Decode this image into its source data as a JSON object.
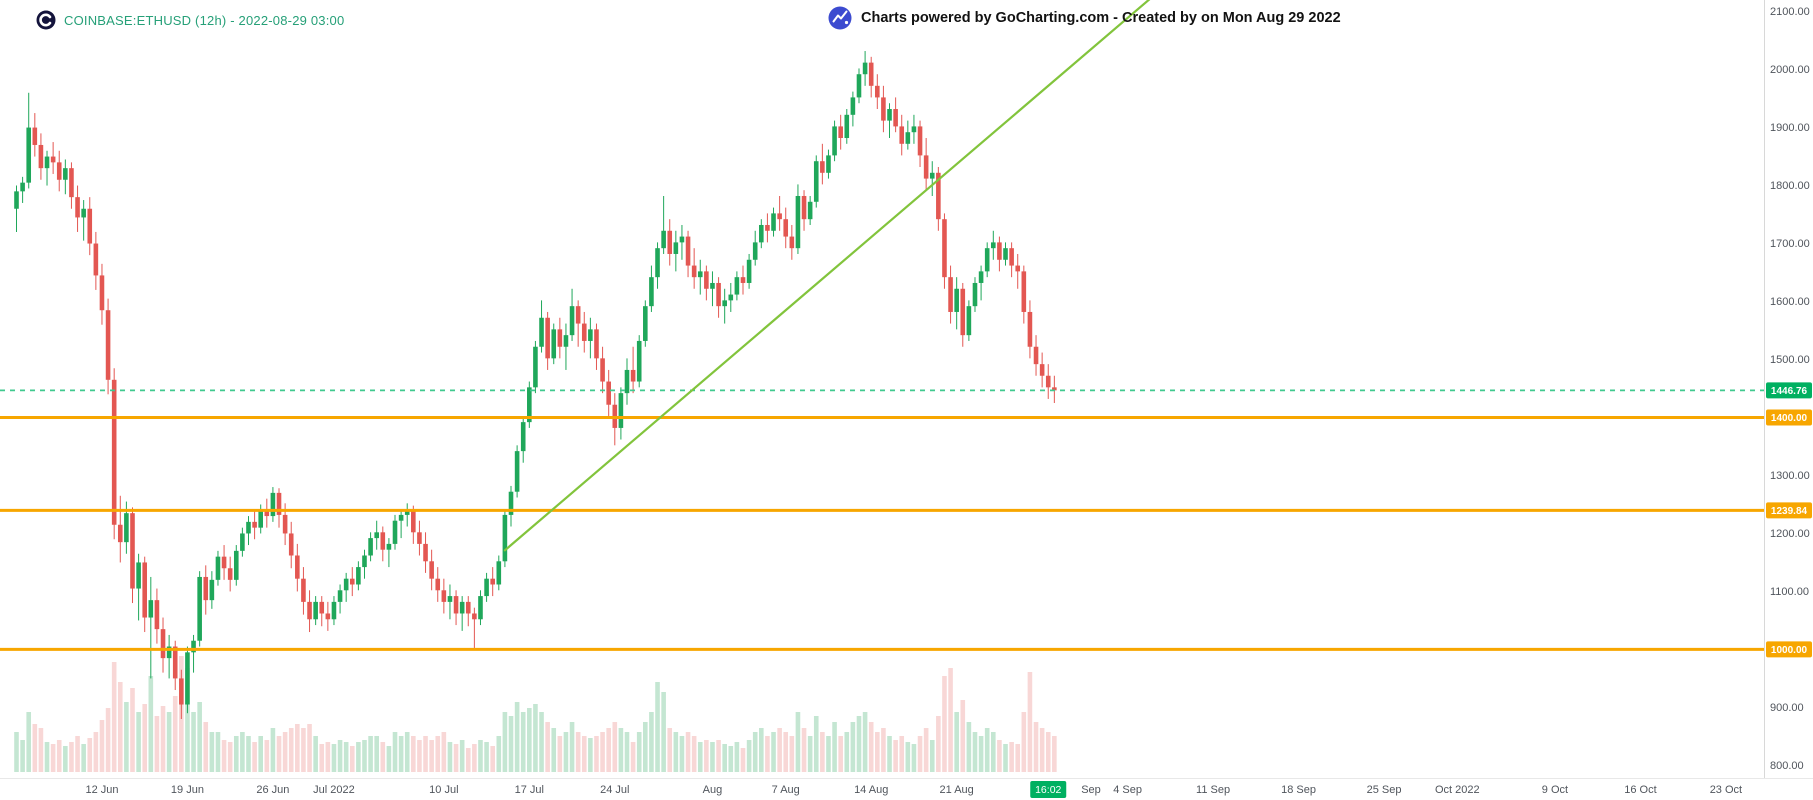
{
  "header": {
    "symbol_title": "COINBASE:ETHUSD (12h) - 2022-08-29 03:00",
    "watermark": "Charts powered by GoCharting.com - Created by  on Mon Aug 29 2022"
  },
  "colors": {
    "up": "#1fa75a",
    "down": "#e35752",
    "vol_up": "rgba(43,165,92,0.28)",
    "vol_down": "rgba(227,87,82,0.24)",
    "orange_level": "#f7a600",
    "last_price_line": "#40c98f",
    "badge_green": "#00b061",
    "trend": "#82c43c",
    "axis_text": "#50555c",
    "axis_border": "#d8d8d8",
    "symbol_text": "#26a078",
    "watermark_text": "#121212",
    "exchange_logo_bg": "#14143c",
    "gocharting_logo_bg": "#3c4bd0"
  },
  "chart_data": {
    "type": "candlestick",
    "symbol": "COINBASE:ETHUSD",
    "interval": "12h",
    "title": "COINBASE:ETHUSD (12h) - 2022-08-29 03:00",
    "grid": "off",
    "legend_position": "none",
    "price_axis": {
      "min": 800,
      "max": 2100,
      "tick_step": 100,
      "ticks": [
        {
          "value": 2100,
          "label": "2100.00"
        },
        {
          "value": 2000,
          "label": "2000.00"
        },
        {
          "value": 1900,
          "label": "1900.00"
        },
        {
          "value": 1800,
          "label": "1800.00"
        },
        {
          "value": 1700,
          "label": "1700.00"
        },
        {
          "value": 1600,
          "label": "1600.00"
        },
        {
          "value": 1500,
          "label": "1500.00"
        },
        {
          "value": 1400,
          "label": "1400.00"
        },
        {
          "value": 1300,
          "label": "1300.00"
        },
        {
          "value": 1200,
          "label": "1200.00"
        },
        {
          "value": 1100,
          "label": "1100.00"
        },
        {
          "value": 1000,
          "label": "1000.00"
        },
        {
          "value": 900,
          "label": "900.00"
        },
        {
          "value": 800,
          "label": "800.00"
        }
      ]
    },
    "time_ticks": [
      {
        "label": "12 Jun",
        "index": 14
      },
      {
        "label": "19 Jun",
        "index": 28
      },
      {
        "label": "26 Jun",
        "index": 42
      },
      {
        "label": "Jul 2022",
        "index": 52
      },
      {
        "label": "10 Jul",
        "index": 70
      },
      {
        "label": "17 Jul",
        "index": 84
      },
      {
        "label": "24 Jul",
        "index": 98
      },
      {
        "label": "Aug",
        "index": 114
      },
      {
        "label": "7 Aug",
        "index": 126
      },
      {
        "label": "14 Aug",
        "index": 140
      },
      {
        "label": "21 Aug",
        "index": 154
      },
      {
        "label": "Sep",
        "index": 176
      },
      {
        "label": "4 Sep",
        "index": 182
      },
      {
        "label": "11 Sep",
        "index": 196
      },
      {
        "label": "18 Sep",
        "index": 210
      },
      {
        "label": "25 Sep",
        "index": 224
      },
      {
        "label": "Oct 2022",
        "index": 236
      },
      {
        "label": "9 Oct",
        "index": 252
      },
      {
        "label": "16 Oct",
        "index": 266
      },
      {
        "label": "23 Oct",
        "index": 280
      }
    ],
    "levels": [
      {
        "name": "last-price-line",
        "price": 1446.76,
        "label": "1446.76",
        "style": "dashed",
        "line_color": "#40c98f",
        "badge_color": "#00b061"
      },
      {
        "name": "resistance-line-1400",
        "price": 1400,
        "label": "1400.00",
        "style": "solid",
        "line_color": "#f7a600",
        "badge_color": "#f7a600"
      },
      {
        "name": "support-line-1239",
        "price": 1239.84,
        "label": "1239.84",
        "style": "solid",
        "line_color": "#f7a600",
        "badge_color": "#f7a600"
      },
      {
        "name": "support-line-1000",
        "price": 1000,
        "label": "1000.00",
        "style": "solid",
        "line_color": "#f7a600",
        "badge_color": "#f7a600"
      }
    ],
    "trend_line": {
      "from": {
        "index": 80,
        "price": 1171
      },
      "to": {
        "index": 186,
        "price": 2125
      }
    },
    "time_badge": {
      "label": "16:02",
      "index": 169
    },
    "last_price": 1446.76,
    "candles_format": [
      "open",
      "high",
      "low",
      "close",
      "volume"
    ],
    "candles": [
      [
        1760,
        1800,
        1720,
        1790,
        20
      ],
      [
        1790,
        1815,
        1770,
        1805,
        16
      ],
      [
        1805,
        1960,
        1795,
        1900,
        30
      ],
      [
        1900,
        1925,
        1850,
        1870,
        24
      ],
      [
        1870,
        1890,
        1810,
        1830,
        22
      ],
      [
        1830,
        1860,
        1800,
        1850,
        15
      ],
      [
        1850,
        1875,
        1820,
        1840,
        14
      ],
      [
        1840,
        1860,
        1790,
        1810,
        16
      ],
      [
        1810,
        1845,
        1785,
        1830,
        13
      ],
      [
        1830,
        1840,
        1760,
        1780,
        15
      ],
      [
        1780,
        1800,
        1720,
        1745,
        18
      ],
      [
        1745,
        1775,
        1705,
        1760,
        14
      ],
      [
        1760,
        1780,
        1680,
        1700,
        17
      ],
      [
        1700,
        1720,
        1620,
        1645,
        20
      ],
      [
        1645,
        1665,
        1560,
        1585,
        26
      ],
      [
        1585,
        1605,
        1440,
        1465,
        32
      ],
      [
        1465,
        1485,
        1190,
        1215,
        55
      ],
      [
        1215,
        1265,
        1150,
        1185,
        45
      ],
      [
        1185,
        1255,
        1165,
        1235,
        35
      ],
      [
        1235,
        1245,
        1080,
        1105,
        42
      ],
      [
        1105,
        1165,
        1050,
        1150,
        30
      ],
      [
        1150,
        1160,
        1030,
        1055,
        34
      ],
      [
        1055,
        1125,
        950,
        1085,
        48
      ],
      [
        1085,
        1105,
        1010,
        1035,
        28
      ],
      [
        1035,
        1055,
        960,
        985,
        33
      ],
      [
        985,
        1025,
        950,
        1005,
        30
      ],
      [
        1005,
        1015,
        930,
        950,
        38
      ],
      [
        950,
        965,
        880,
        905,
        58
      ],
      [
        905,
        1005,
        890,
        995,
        52
      ],
      [
        995,
        1025,
        960,
        1015,
        30
      ],
      [
        1015,
        1135,
        1005,
        1125,
        35
      ],
      [
        1125,
        1145,
        1060,
        1085,
        25
      ],
      [
        1085,
        1135,
        1070,
        1120,
        20
      ],
      [
        1120,
        1170,
        1110,
        1160,
        20
      ],
      [
        1160,
        1180,
        1120,
        1140,
        16
      ],
      [
        1140,
        1160,
        1100,
        1120,
        15
      ],
      [
        1120,
        1180,
        1110,
        1170,
        18
      ],
      [
        1170,
        1210,
        1160,
        1200,
        20
      ],
      [
        1200,
        1230,
        1180,
        1220,
        18
      ],
      [
        1220,
        1240,
        1190,
        1210,
        15
      ],
      [
        1210,
        1250,
        1200,
        1240,
        18
      ],
      [
        1240,
        1260,
        1210,
        1230,
        16
      ],
      [
        1230,
        1280,
        1220,
        1270,
        22
      ],
      [
        1270,
        1278,
        1210,
        1232,
        18
      ],
      [
        1232,
        1252,
        1180,
        1200,
        20
      ],
      [
        1200,
        1220,
        1140,
        1162,
        22
      ],
      [
        1162,
        1182,
        1100,
        1122,
        24
      ],
      [
        1122,
        1142,
        1060,
        1082,
        22
      ],
      [
        1082,
        1102,
        1030,
        1052,
        24
      ],
      [
        1052,
        1092,
        1042,
        1082,
        18
      ],
      [
        1082,
        1092,
        1040,
        1062,
        14
      ],
      [
        1062,
        1082,
        1032,
        1052,
        15
      ],
      [
        1052,
        1092,
        1042,
        1082,
        14
      ],
      [
        1082,
        1112,
        1062,
        1102,
        16
      ],
      [
        1102,
        1132,
        1082,
        1122,
        15
      ],
      [
        1122,
        1142,
        1092,
        1112,
        13
      ],
      [
        1112,
        1152,
        1102,
        1142,
        15
      ],
      [
        1142,
        1172,
        1122,
        1162,
        16
      ],
      [
        1162,
        1202,
        1152,
        1192,
        18
      ],
      [
        1192,
        1222,
        1172,
        1202,
        18
      ],
      [
        1202,
        1212,
        1152,
        1172,
        15
      ],
      [
        1172,
        1192,
        1142,
        1182,
        13
      ],
      [
        1182,
        1232,
        1172,
        1222,
        20
      ],
      [
        1222,
        1242,
        1192,
        1232,
        18
      ],
      [
        1232,
        1252,
        1212,
        1242,
        20
      ],
      [
        1242,
        1248,
        1182,
        1202,
        18
      ],
      [
        1202,
        1222,
        1162,
        1182,
        16
      ],
      [
        1182,
        1202,
        1132,
        1152,
        18
      ],
      [
        1152,
        1172,
        1102,
        1122,
        16
      ],
      [
        1122,
        1142,
        1082,
        1102,
        18
      ],
      [
        1102,
        1122,
        1062,
        1082,
        20
      ],
      [
        1082,
        1112,
        1052,
        1092,
        15
      ],
      [
        1092,
        1102,
        1042,
        1062,
        14
      ],
      [
        1062,
        1092,
        1032,
        1082,
        16
      ],
      [
        1082,
        1092,
        1040,
        1062,
        12
      ],
      [
        1062,
        1072,
        1000,
        1052,
        14
      ],
      [
        1052,
        1102,
        1042,
        1092,
        16
      ],
      [
        1092,
        1132,
        1082,
        1122,
        15
      ],
      [
        1122,
        1142,
        1092,
        1112,
        13
      ],
      [
        1112,
        1162,
        1102,
        1152,
        18
      ],
      [
        1152,
        1242,
        1142,
        1232,
        30
      ],
      [
        1232,
        1282,
        1212,
        1272,
        28
      ],
      [
        1272,
        1352,
        1262,
        1342,
        35
      ],
      [
        1342,
        1402,
        1322,
        1392,
        30
      ],
      [
        1392,
        1462,
        1382,
        1452,
        32
      ],
      [
        1452,
        1532,
        1442,
        1522,
        34
      ],
      [
        1522,
        1602,
        1512,
        1572,
        30
      ],
      [
        1572,
        1582,
        1482,
        1502,
        25
      ],
      [
        1502,
        1562,
        1492,
        1552,
        22
      ],
      [
        1552,
        1572,
        1502,
        1522,
        18
      ],
      [
        1522,
        1562,
        1482,
        1542,
        20
      ],
      [
        1542,
        1622,
        1532,
        1592,
        25
      ],
      [
        1592,
        1602,
        1522,
        1562,
        20
      ],
      [
        1562,
        1582,
        1512,
        1532,
        18
      ],
      [
        1532,
        1572,
        1502,
        1552,
        17
      ],
      [
        1552,
        1562,
        1482,
        1502,
        18
      ],
      [
        1502,
        1522,
        1442,
        1462,
        20
      ],
      [
        1462,
        1482,
        1402,
        1422,
        22
      ],
      [
        1422,
        1442,
        1352,
        1382,
        25
      ],
      [
        1382,
        1452,
        1362,
        1442,
        22
      ],
      [
        1442,
        1502,
        1422,
        1482,
        20
      ],
      [
        1482,
        1522,
        1442,
        1462,
        15
      ],
      [
        1462,
        1542,
        1452,
        1532,
        20
      ],
      [
        1532,
        1602,
        1522,
        1592,
        25
      ],
      [
        1592,
        1662,
        1582,
        1642,
        30
      ],
      [
        1642,
        1702,
        1622,
        1692,
        45
      ],
      [
        1692,
        1782,
        1682,
        1722,
        40
      ],
      [
        1722,
        1742,
        1662,
        1682,
        22
      ],
      [
        1682,
        1722,
        1652,
        1702,
        20
      ],
      [
        1702,
        1732,
        1672,
        1712,
        18
      ],
      [
        1712,
        1722,
        1642,
        1662,
        20
      ],
      [
        1662,
        1692,
        1622,
        1642,
        18
      ],
      [
        1642,
        1672,
        1612,
        1652,
        15
      ],
      [
        1652,
        1662,
        1602,
        1622,
        16
      ],
      [
        1622,
        1652,
        1592,
        1632,
        15
      ],
      [
        1632,
        1642,
        1572,
        1592,
        16
      ],
      [
        1592,
        1622,
        1562,
        1602,
        14
      ],
      [
        1602,
        1632,
        1582,
        1612,
        13
      ],
      [
        1612,
        1652,
        1602,
        1642,
        15
      ],
      [
        1642,
        1662,
        1612,
        1632,
        12
      ],
      [
        1632,
        1682,
        1622,
        1672,
        16
      ],
      [
        1672,
        1722,
        1662,
        1702,
        20
      ],
      [
        1702,
        1742,
        1692,
        1732,
        22
      ],
      [
        1732,
        1752,
        1702,
        1722,
        18
      ],
      [
        1722,
        1762,
        1712,
        1752,
        20
      ],
      [
        1752,
        1782,
        1722,
        1742,
        22
      ],
      [
        1742,
        1762,
        1692,
        1712,
        20
      ],
      [
        1712,
        1732,
        1672,
        1692,
        18
      ],
      [
        1692,
        1802,
        1682,
        1782,
        30
      ],
      [
        1782,
        1792,
        1722,
        1742,
        22
      ],
      [
        1742,
        1782,
        1732,
        1772,
        18
      ],
      [
        1772,
        1852,
        1762,
        1842,
        28
      ],
      [
        1842,
        1872,
        1802,
        1822,
        20
      ],
      [
        1822,
        1862,
        1812,
        1852,
        18
      ],
      [
        1852,
        1912,
        1842,
        1902,
        25
      ],
      [
        1902,
        1922,
        1862,
        1882,
        18
      ],
      [
        1882,
        1932,
        1872,
        1922,
        20
      ],
      [
        1922,
        1962,
        1902,
        1952,
        25
      ],
      [
        1952,
        2002,
        1942,
        1992,
        28
      ],
      [
        1992,
        2032,
        1972,
        2012,
        30
      ],
      [
        2012,
        2022,
        1952,
        1972,
        25
      ],
      [
        1972,
        1992,
        1932,
        1952,
        20
      ],
      [
        1952,
        1972,
        1892,
        1912,
        22
      ],
      [
        1912,
        1942,
        1882,
        1932,
        18
      ],
      [
        1932,
        1952,
        1892,
        1902,
        16
      ],
      [
        1902,
        1922,
        1852,
        1872,
        18
      ],
      [
        1872,
        1912,
        1862,
        1892,
        15
      ],
      [
        1892,
        1922,
        1872,
        1902,
        14
      ],
      [
        1902,
        1912,
        1832,
        1852,
        18
      ],
      [
        1852,
        1882,
        1792,
        1812,
        22
      ],
      [
        1812,
        1842,
        1782,
        1822,
        16
      ],
      [
        1822,
        1832,
        1722,
        1742,
        28
      ],
      [
        1742,
        1752,
        1622,
        1642,
        48
      ],
      [
        1642,
        1662,
        1562,
        1582,
        52
      ],
      [
        1582,
        1642,
        1552,
        1622,
        30
      ],
      [
        1622,
        1632,
        1522,
        1542,
        36
      ],
      [
        1542,
        1602,
        1532,
        1592,
        25
      ],
      [
        1592,
        1642,
        1582,
        1632,
        20
      ],
      [
        1632,
        1662,
        1602,
        1652,
        18
      ],
      [
        1652,
        1702,
        1642,
        1692,
        22
      ],
      [
        1692,
        1722,
        1672,
        1702,
        20
      ],
      [
        1702,
        1712,
        1652,
        1672,
        16
      ],
      [
        1672,
        1702,
        1662,
        1692,
        14
      ],
      [
        1692,
        1702,
        1642,
        1662,
        15
      ],
      [
        1662,
        1682,
        1622,
        1652,
        14
      ],
      [
        1652,
        1662,
        1562,
        1582,
        30
      ],
      [
        1582,
        1602,
        1502,
        1522,
        50
      ],
      [
        1522,
        1542,
        1472,
        1492,
        25
      ],
      [
        1492,
        1512,
        1452,
        1472,
        22
      ],
      [
        1472,
        1492,
        1432,
        1452,
        20
      ],
      [
        1452,
        1472,
        1425,
        1446.76,
        18
      ]
    ]
  }
}
